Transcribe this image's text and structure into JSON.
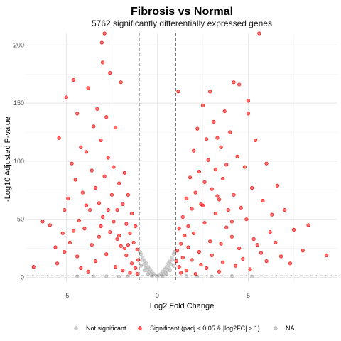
{
  "chart_data": {
    "type": "scatter",
    "title": "Fibrosis vs Normal",
    "subtitle": "5762 significantly differentially expressed genes",
    "xlabel": "Log2 Fold Change",
    "ylabel": "-Log10 Adjusted P-value",
    "xlim": [
      -7.2,
      9.9
    ],
    "ylim": [
      -4,
      210
    ],
    "x_ticks": [
      -5,
      0,
      5
    ],
    "y_ticks": [
      0,
      50,
      100,
      150,
      200
    ],
    "grid": true,
    "legend_position": "bottom",
    "thresholds": {
      "log2fc": [
        -1,
        1
      ],
      "neg_log10_padj": 1.3
    },
    "series": [
      {
        "name": "Not significant",
        "color": "#b3b3b3",
        "points": [
          [
            -0.9,
            20
          ],
          [
            -0.8,
            17
          ],
          [
            -0.7,
            14
          ],
          [
            -0.6,
            12
          ],
          [
            -0.5,
            9
          ],
          [
            -0.4,
            7
          ],
          [
            -0.3,
            5
          ],
          [
            -0.2,
            3
          ],
          [
            -0.1,
            2
          ],
          [
            0.0,
            1
          ],
          [
            0.1,
            2
          ],
          [
            0.2,
            3
          ],
          [
            0.3,
            5
          ],
          [
            0.4,
            7
          ],
          [
            0.5,
            9
          ],
          [
            0.6,
            12
          ],
          [
            0.7,
            14
          ],
          [
            0.8,
            17
          ],
          [
            0.9,
            20
          ],
          [
            -0.95,
            22
          ],
          [
            -0.85,
            15
          ],
          [
            -0.75,
            11
          ],
          [
            -0.65,
            8
          ],
          [
            -0.55,
            6
          ],
          [
            -0.45,
            4
          ],
          [
            -0.35,
            3
          ],
          [
            -0.25,
            2
          ],
          [
            0.25,
            2
          ],
          [
            0.35,
            3
          ],
          [
            0.45,
            4
          ],
          [
            0.55,
            6
          ],
          [
            0.65,
            8
          ],
          [
            0.75,
            11
          ],
          [
            0.85,
            15
          ],
          [
            0.95,
            22
          ],
          [
            -0.9,
            10
          ],
          [
            -0.7,
            6
          ],
          [
            -0.5,
            3
          ],
          [
            -0.3,
            1
          ],
          [
            0.3,
            1
          ],
          [
            0.5,
            3
          ],
          [
            0.7,
            6
          ],
          [
            0.9,
            10
          ],
          [
            -1.6,
            1
          ],
          [
            -2.1,
            0.6
          ],
          [
            -2.8,
            0.9
          ],
          [
            -3.5,
            0.8
          ],
          [
            1.6,
            1
          ],
          [
            2.2,
            0.7
          ],
          [
            3.0,
            0.9
          ],
          [
            4.1,
            1.1
          ],
          [
            -4.4,
            1.0
          ],
          [
            5.2,
            0.8
          ]
        ]
      },
      {
        "name": "Significant (padj < 0.05 & |log2FC| > 1)",
        "color": "#ff0000",
        "points": [
          [
            -6.8,
            9
          ],
          [
            -6.3,
            48
          ],
          [
            -5.9,
            45
          ],
          [
            -5.6,
            26
          ],
          [
            -5.4,
            120
          ],
          [
            -5.2,
            38
          ],
          [
            -5.0,
            155
          ],
          [
            -4.9,
            68
          ],
          [
            -4.7,
            98
          ],
          [
            -4.6,
            170
          ],
          [
            -4.5,
            84
          ],
          [
            -4.4,
            141
          ],
          [
            -4.3,
            49
          ],
          [
            -4.2,
            112
          ],
          [
            -4.1,
            73
          ],
          [
            -3.9,
            108
          ],
          [
            -3.8,
            163
          ],
          [
            -3.7,
            58
          ],
          [
            -3.6,
            92
          ],
          [
            -3.5,
            130
          ],
          [
            -3.4,
            77
          ],
          [
            -3.3,
            145
          ],
          [
            -3.2,
            64
          ],
          [
            -3.1,
            118
          ],
          [
            -3.0,
            185
          ],
          [
            -2.9,
            87
          ],
          [
            -2.8,
            138
          ],
          [
            -2.7,
            103
          ],
          [
            -2.6,
            176
          ],
          [
            -2.5,
            71
          ],
          [
            -2.4,
            95
          ],
          [
            -2.3,
            129
          ],
          [
            -2.2,
            58
          ],
          [
            -2.1,
            81
          ],
          [
            -2.0,
            168
          ],
          [
            -1.9,
            63
          ],
          [
            -1.8,
            90
          ],
          [
            -1.7,
            46
          ],
          [
            -1.6,
            71
          ],
          [
            -1.5,
            38
          ],
          [
            -1.4,
            55
          ],
          [
            -1.3,
            30
          ],
          [
            -1.2,
            44
          ],
          [
            -1.1,
            24
          ],
          [
            -1.05,
            15
          ],
          [
            -5.5,
            12
          ],
          [
            -5.1,
            22
          ],
          [
            -4.8,
            30
          ],
          [
            -4.4,
            18
          ],
          [
            -4.0,
            42
          ],
          [
            -3.6,
            28
          ],
          [
            -3.2,
            35
          ],
          [
            -2.8,
            20
          ],
          [
            -2.4,
            48
          ],
          [
            -2.0,
            27
          ],
          [
            -1.7,
            19
          ],
          [
            -1.4,
            12
          ],
          [
            -1.2,
            8
          ],
          [
            -3.0,
            52
          ],
          [
            -2.6,
            39
          ],
          [
            -2.2,
            33
          ],
          [
            -1.8,
            25
          ],
          [
            -4.2,
            8
          ],
          [
            -3.8,
            5
          ],
          [
            -3.4,
            14
          ],
          [
            -2.3,
            9
          ],
          [
            -1.9,
            6
          ],
          [
            -1.5,
            4
          ],
          [
            -1.1,
            3
          ],
          [
            -4.6,
            40
          ],
          [
            -3.9,
            62
          ],
          [
            -3.1,
            44
          ],
          [
            -2.7,
            58
          ],
          [
            -2.1,
            36
          ],
          [
            -1.6,
            28
          ],
          [
            -2.9,
            210
          ],
          [
            -3.05,
            202
          ],
          [
            -5.1,
            58
          ],
          [
            1.05,
            14
          ],
          [
            1.1,
            23
          ],
          [
            1.2,
            42
          ],
          [
            1.3,
            29
          ],
          [
            1.4,
            52
          ],
          [
            1.5,
            36
          ],
          [
            1.6,
            68
          ],
          [
            1.7,
            44
          ],
          [
            1.8,
            86
          ],
          [
            1.9,
            59
          ],
          [
            2.0,
            109
          ],
          [
            2.1,
            73
          ],
          [
            2.2,
            128
          ],
          [
            2.3,
            91
          ],
          [
            2.4,
            63
          ],
          [
            2.5,
            148
          ],
          [
            2.6,
            82
          ],
          [
            2.7,
            119
          ],
          [
            2.8,
            101
          ],
          [
            2.9,
            160
          ],
          [
            3.0,
            76
          ],
          [
            3.1,
            134
          ],
          [
            3.2,
            93
          ],
          [
            3.3,
            120
          ],
          [
            3.4,
            67
          ],
          [
            3.5,
            112
          ],
          [
            3.6,
            85
          ],
          [
            3.7,
            143
          ],
          [
            3.8,
            97
          ],
          [
            3.9,
            58
          ],
          [
            4.0,
            125
          ],
          [
            4.2,
            71
          ],
          [
            4.4,
            104
          ],
          [
            4.6,
            60
          ],
          [
            4.8,
            95
          ],
          [
            5.0,
            141
          ],
          [
            5.2,
            77
          ],
          [
            5.4,
            118
          ],
          [
            5.6,
            210
          ],
          [
            5.8,
            66
          ],
          [
            6.0,
            98
          ],
          [
            6.3,
            54
          ],
          [
            6.6,
            79
          ],
          [
            7.0,
            58
          ],
          [
            7.5,
            41
          ],
          [
            8.0,
            23
          ],
          [
            8.3,
            45
          ],
          [
            9.3,
            19
          ],
          [
            1.2,
            9
          ],
          [
            1.4,
            17
          ],
          [
            1.7,
            26
          ],
          [
            2.0,
            38
          ],
          [
            2.3,
            22
          ],
          [
            2.6,
            47
          ],
          [
            2.9,
            31
          ],
          [
            3.2,
            55
          ],
          [
            3.5,
            29
          ],
          [
            3.8,
            43
          ],
          [
            4.1,
            35
          ],
          [
            4.5,
            25
          ],
          [
            4.9,
            50
          ],
          [
            5.3,
            33
          ],
          [
            5.7,
            21
          ],
          [
            6.2,
            39
          ],
          [
            6.8,
            18
          ],
          [
            7.3,
            12
          ],
          [
            1.3,
            4
          ],
          [
            1.6,
            6
          ],
          [
            2.1,
            3
          ],
          [
            2.7,
            8
          ],
          [
            3.4,
            5
          ],
          [
            4.3,
            10
          ],
          [
            5.1,
            7
          ],
          [
            6.0,
            14
          ],
          [
            1.9,
            15
          ],
          [
            2.4,
            11
          ],
          [
            3.0,
            19
          ],
          [
            3.6,
            13
          ],
          [
            4.7,
            16
          ],
          [
            5.5,
            28
          ],
          [
            6.5,
            30
          ],
          [
            2.5,
            62
          ],
          [
            3.3,
            70
          ],
          [
            4.1,
            48
          ],
          [
            1.15,
            160
          ],
          [
            4.2,
            168
          ],
          [
            4.5,
            166
          ],
          [
            5.0,
            152
          ]
        ]
      }
    ],
    "legend": [
      {
        "label": "Not significant",
        "color": "#b3b3b3"
      },
      {
        "label": "Significant (padj < 0.05 & |log2FC| > 1)",
        "color": "#ff0000"
      },
      {
        "label": "NA",
        "color": "#b3b3b3"
      }
    ]
  }
}
